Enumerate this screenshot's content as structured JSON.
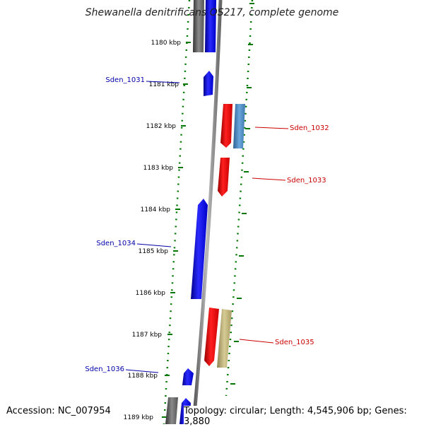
{
  "title": "Shewanella denitrificans OS217, complete genome",
  "footer": {
    "accession": "Accession: NC_007954",
    "topology": "Topology: circular; Length: 4,545,906 bp; Genes: 3,880"
  },
  "colors": {
    "forward_gene": "#0000ff",
    "reverse_gene": "#ff0000",
    "other_gray": "#666666",
    "steelblue": "#4f8fc9",
    "khaki": "#bfb278",
    "tick": "#007700",
    "backbone": "#888888"
  },
  "tick_labels": [
    "1180 kbp",
    "1181 kbp",
    "1182 kbp",
    "1183 kbp",
    "1184 kbp",
    "1185 kbp",
    "1186 kbp",
    "1187 kbp",
    "1188 kbp",
    "1189 kbp"
  ],
  "genes": [
    {
      "name": "Sden_1031",
      "strand": "forward",
      "color": "#0000ff",
      "labeled": true
    },
    {
      "name": "Sden_1032",
      "strand": "reverse",
      "color": "#ff0000",
      "labeled": true
    },
    {
      "name": "Sden_1033",
      "strand": "reverse",
      "color": "#ff0000",
      "labeled": true
    },
    {
      "name": "Sden_1034",
      "strand": "forward",
      "color": "#0000ff",
      "labeled": true
    },
    {
      "name": "Sden_1035",
      "strand": "reverse",
      "color": "#ff0000",
      "labeled": true
    },
    {
      "name": "Sden_1036",
      "strand": "forward",
      "color": "#0000ff",
      "labeled": true
    }
  ]
}
